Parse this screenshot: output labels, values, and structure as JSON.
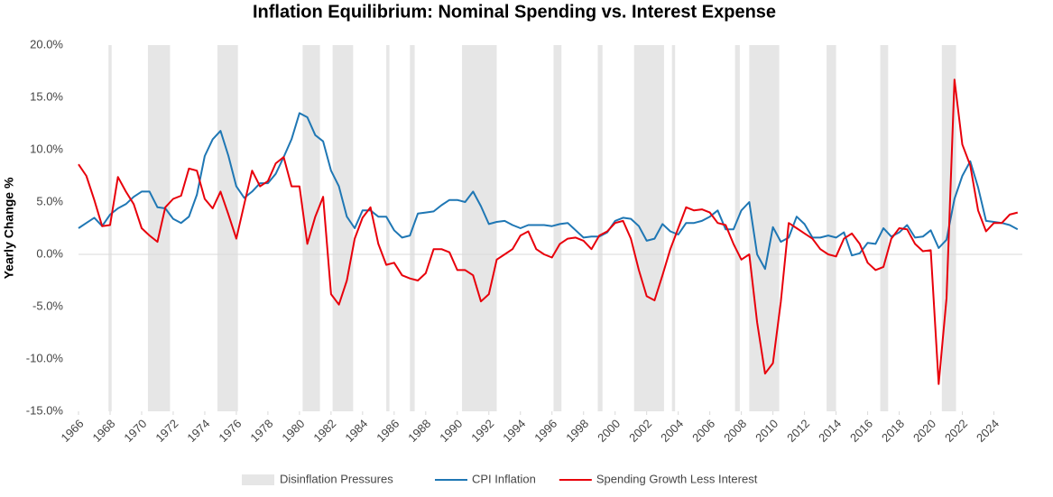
{
  "chart_data": {
    "type": "line",
    "title": "Inflation Equilibrium: Nominal Spending vs. Interest Expense",
    "y_label": "Yearly Change %",
    "x": [
      1966,
      1966.5,
      1967,
      1967.5,
      1968,
      1968.5,
      1969,
      1969.5,
      1970,
      1970.5,
      1971,
      1971.5,
      1972,
      1972.5,
      1973,
      1973.5,
      1974,
      1974.5,
      1975,
      1975.5,
      1976,
      1976.5,
      1977,
      1977.5,
      1978,
      1978.5,
      1979,
      1979.5,
      1980,
      1980.5,
      1981,
      1981.5,
      1982,
      1982.5,
      1983,
      1983.5,
      1984,
      1984.5,
      1985,
      1985.5,
      1986,
      1986.5,
      1987,
      1987.5,
      1988,
      1988.5,
      1989,
      1989.5,
      1990,
      1990.5,
      1991,
      1991.5,
      1992,
      1992.5,
      1993,
      1993.5,
      1994,
      1994.5,
      1995,
      1995.5,
      1996,
      1996.5,
      1997,
      1997.5,
      1998,
      1998.5,
      1999,
      1999.5,
      2000,
      2000.5,
      2001,
      2001.5,
      2002,
      2002.5,
      2003,
      2003.5,
      2004,
      2004.5,
      2005,
      2005.5,
      2006,
      2006.5,
      2007,
      2007.5,
      2008,
      2008.5,
      2009,
      2009.5,
      2010,
      2010.5,
      2011,
      2011.5,
      2012,
      2012.5,
      2013,
      2013.5,
      2014,
      2014.5,
      2015,
      2015.5,
      2016,
      2016.5,
      2017,
      2017.5,
      2018,
      2018.5,
      2019,
      2019.5,
      2020,
      2020.5,
      2021,
      2021.5,
      2022,
      2022.5,
      2023,
      2023.5,
      2024,
      2024.5,
      2025,
      2025.5
    ],
    "series": [
      {
        "name": "CPI Inflation",
        "color": "#1f77b4",
        "values": [
          2.5,
          3.0,
          3.5,
          2.7,
          3.8,
          4.4,
          4.8,
          5.5,
          6.0,
          6.0,
          4.5,
          4.4,
          3.4,
          3.0,
          3.6,
          5.7,
          9.4,
          11.0,
          11.8,
          9.4,
          6.5,
          5.4,
          6.0,
          6.8,
          6.8,
          7.7,
          9.3,
          11.0,
          13.5,
          13.1,
          11.4,
          10.8,
          8.0,
          6.5,
          3.6,
          2.5,
          4.2,
          4.2,
          3.6,
          3.6,
          2.3,
          1.6,
          1.8,
          3.9,
          4.0,
          4.1,
          4.7,
          5.2,
          5.2,
          5.0,
          6.0,
          4.6,
          2.9,
          3.1,
          3.2,
          2.8,
          2.5,
          2.8,
          2.8,
          2.8,
          2.7,
          2.9,
          3.0,
          2.3,
          1.6,
          1.7,
          1.7,
          2.1,
          3.2,
          3.5,
          3.4,
          2.7,
          1.3,
          1.5,
          2.9,
          2.2,
          1.9,
          3.0,
          3.0,
          3.2,
          3.6,
          4.2,
          2.4,
          2.4,
          4.2,
          5.0,
          0.0,
          -1.4,
          2.6,
          1.2,
          1.6,
          3.6,
          2.9,
          1.6,
          1.6,
          1.8,
          1.6,
          2.1,
          -0.1,
          0.1,
          1.1,
          1.0,
          2.5,
          1.7,
          2.1,
          2.8,
          1.6,
          1.7,
          2.3,
          0.6,
          1.4,
          5.3,
          7.5,
          8.9,
          6.4,
          3.2,
          3.1,
          3.0,
          2.8,
          2.4
        ]
      },
      {
        "name": "Spending Growth Less Interest",
        "color": "#e8000b",
        "values": [
          8.6,
          7.5,
          5.2,
          2.7,
          2.8,
          7.4,
          6.0,
          4.8,
          2.5,
          1.8,
          1.2,
          4.5,
          5.3,
          5.6,
          8.2,
          8.0,
          5.3,
          4.4,
          6.0,
          3.8,
          1.5,
          4.8,
          8.0,
          6.5,
          7.0,
          8.7,
          9.3,
          6.5,
          6.5,
          1.0,
          3.6,
          5.5,
          -3.8,
          -4.8,
          -2.5,
          1.5,
          3.5,
          4.5,
          1.0,
          -1.0,
          -0.8,
          -2.0,
          -2.3,
          -2.5,
          -1.8,
          0.5,
          0.5,
          0.2,
          -1.5,
          -1.5,
          -2.0,
          -4.5,
          -3.8,
          -0.5,
          0.0,
          0.5,
          1.8,
          2.2,
          0.5,
          0.0,
          -0.3,
          1.0,
          1.5,
          1.6,
          1.3,
          0.5,
          1.8,
          2.2,
          3.0,
          3.2,
          1.5,
          -1.5,
          -4.0,
          -4.4,
          -2.0,
          0.5,
          2.5,
          4.5,
          4.2,
          4.3,
          4.0,
          3.0,
          2.8,
          1.0,
          -0.5,
          0.0,
          -6.5,
          -11.4,
          -10.4,
          -4.5,
          3.0,
          2.5,
          2.0,
          1.5,
          0.5,
          0.0,
          -0.2,
          1.5,
          2.0,
          1.0,
          -0.8,
          -1.5,
          -1.2,
          1.5,
          2.5,
          2.4,
          1.0,
          0.3,
          0.4,
          -12.4,
          -4.2,
          16.7,
          10.5,
          8.5,
          4.2,
          2.2,
          3.0,
          3.0,
          3.8,
          4.0
        ]
      }
    ],
    "bands": {
      "name": "Disinflation Pressures",
      "color": "#e6e6e6",
      "ranges": [
        [
          1967.9,
          1968.1
        ],
        [
          1970.4,
          1971.8
        ],
        [
          1974.8,
          1976.1
        ],
        [
          1980.2,
          1981.3
        ],
        [
          1982.1,
          1983.4
        ],
        [
          1985.5,
          1985.7
        ],
        [
          1987.0,
          1987.3
        ],
        [
          1990.3,
          1992.5
        ],
        [
          1996.1,
          1996.6
        ],
        [
          1998.9,
          1999.2
        ],
        [
          2001.2,
          2003.1
        ],
        [
          2003.6,
          2003.8
        ],
        [
          2007.6,
          2007.9
        ],
        [
          2008.5,
          2010.4
        ],
        [
          2013.4,
          2014.0
        ],
        [
          2016.8,
          2017.3
        ],
        [
          2020.7,
          2021.6
        ]
      ]
    },
    "xlim": [
      1966,
      2025.8
    ],
    "xticks": [
      1966,
      1968,
      1970,
      1972,
      1974,
      1976,
      1978,
      1980,
      1982,
      1984,
      1986,
      1988,
      1990,
      1992,
      1994,
      1996,
      1998,
      2000,
      2002,
      2004,
      2006,
      2008,
      2010,
      2012,
      2014,
      2016,
      2018,
      2020,
      2022,
      2024
    ],
    "ylim": [
      -15,
      20
    ],
    "yticks": [
      {
        "value": -15,
        "label": "-15.0%"
      },
      {
        "value": -10,
        "label": "-10.0%"
      },
      {
        "value": -5,
        "label": "-5.0%"
      },
      {
        "value": 0,
        "label": "0.0%"
      },
      {
        "value": 5,
        "label": "5.0%"
      },
      {
        "value": 10,
        "label": "10.0%"
      },
      {
        "value": 15,
        "label": "15.0%"
      },
      {
        "value": 20,
        "label": "20.0%"
      }
    ],
    "legend": "bottom"
  }
}
